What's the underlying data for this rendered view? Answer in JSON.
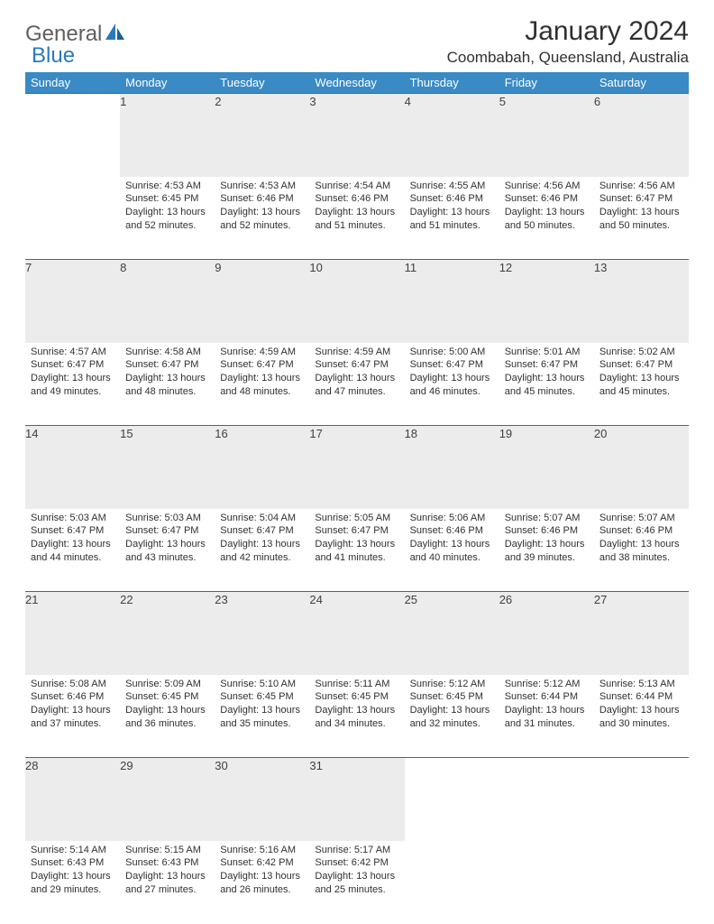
{
  "logo": {
    "text1": "General",
    "text2": "Blue"
  },
  "title": "January 2024",
  "location": "Coombabah, Queensland, Australia",
  "colors": {
    "header_bg": "#3a8ac5",
    "header_fg": "#ffffff",
    "daynum_bg": "#ececec",
    "rule": "#2a6fa5",
    "logo_gray": "#5f5f5f",
    "logo_blue": "#2a7ab9",
    "body_text": "#303030"
  },
  "weekdays": [
    "Sunday",
    "Monday",
    "Tuesday",
    "Wednesday",
    "Thursday",
    "Friday",
    "Saturday"
  ],
  "weeks": [
    [
      null,
      {
        "n": "1",
        "sr": "Sunrise: 4:53 AM",
        "ss": "Sunset: 6:45 PM",
        "d1": "Daylight: 13 hours",
        "d2": "and 52 minutes."
      },
      {
        "n": "2",
        "sr": "Sunrise: 4:53 AM",
        "ss": "Sunset: 6:46 PM",
        "d1": "Daylight: 13 hours",
        "d2": "and 52 minutes."
      },
      {
        "n": "3",
        "sr": "Sunrise: 4:54 AM",
        "ss": "Sunset: 6:46 PM",
        "d1": "Daylight: 13 hours",
        "d2": "and 51 minutes."
      },
      {
        "n": "4",
        "sr": "Sunrise: 4:55 AM",
        "ss": "Sunset: 6:46 PM",
        "d1": "Daylight: 13 hours",
        "d2": "and 51 minutes."
      },
      {
        "n": "5",
        "sr": "Sunrise: 4:56 AM",
        "ss": "Sunset: 6:46 PM",
        "d1": "Daylight: 13 hours",
        "d2": "and 50 minutes."
      },
      {
        "n": "6",
        "sr": "Sunrise: 4:56 AM",
        "ss": "Sunset: 6:47 PM",
        "d1": "Daylight: 13 hours",
        "d2": "and 50 minutes."
      }
    ],
    [
      {
        "n": "7",
        "sr": "Sunrise: 4:57 AM",
        "ss": "Sunset: 6:47 PM",
        "d1": "Daylight: 13 hours",
        "d2": "and 49 minutes."
      },
      {
        "n": "8",
        "sr": "Sunrise: 4:58 AM",
        "ss": "Sunset: 6:47 PM",
        "d1": "Daylight: 13 hours",
        "d2": "and 48 minutes."
      },
      {
        "n": "9",
        "sr": "Sunrise: 4:59 AM",
        "ss": "Sunset: 6:47 PM",
        "d1": "Daylight: 13 hours",
        "d2": "and 48 minutes."
      },
      {
        "n": "10",
        "sr": "Sunrise: 4:59 AM",
        "ss": "Sunset: 6:47 PM",
        "d1": "Daylight: 13 hours",
        "d2": "and 47 minutes."
      },
      {
        "n": "11",
        "sr": "Sunrise: 5:00 AM",
        "ss": "Sunset: 6:47 PM",
        "d1": "Daylight: 13 hours",
        "d2": "and 46 minutes."
      },
      {
        "n": "12",
        "sr": "Sunrise: 5:01 AM",
        "ss": "Sunset: 6:47 PM",
        "d1": "Daylight: 13 hours",
        "d2": "and 45 minutes."
      },
      {
        "n": "13",
        "sr": "Sunrise: 5:02 AM",
        "ss": "Sunset: 6:47 PM",
        "d1": "Daylight: 13 hours",
        "d2": "and 45 minutes."
      }
    ],
    [
      {
        "n": "14",
        "sr": "Sunrise: 5:03 AM",
        "ss": "Sunset: 6:47 PM",
        "d1": "Daylight: 13 hours",
        "d2": "and 44 minutes."
      },
      {
        "n": "15",
        "sr": "Sunrise: 5:03 AM",
        "ss": "Sunset: 6:47 PM",
        "d1": "Daylight: 13 hours",
        "d2": "and 43 minutes."
      },
      {
        "n": "16",
        "sr": "Sunrise: 5:04 AM",
        "ss": "Sunset: 6:47 PM",
        "d1": "Daylight: 13 hours",
        "d2": "and 42 minutes."
      },
      {
        "n": "17",
        "sr": "Sunrise: 5:05 AM",
        "ss": "Sunset: 6:47 PM",
        "d1": "Daylight: 13 hours",
        "d2": "and 41 minutes."
      },
      {
        "n": "18",
        "sr": "Sunrise: 5:06 AM",
        "ss": "Sunset: 6:46 PM",
        "d1": "Daylight: 13 hours",
        "d2": "and 40 minutes."
      },
      {
        "n": "19",
        "sr": "Sunrise: 5:07 AM",
        "ss": "Sunset: 6:46 PM",
        "d1": "Daylight: 13 hours",
        "d2": "and 39 minutes."
      },
      {
        "n": "20",
        "sr": "Sunrise: 5:07 AM",
        "ss": "Sunset: 6:46 PM",
        "d1": "Daylight: 13 hours",
        "d2": "and 38 minutes."
      }
    ],
    [
      {
        "n": "21",
        "sr": "Sunrise: 5:08 AM",
        "ss": "Sunset: 6:46 PM",
        "d1": "Daylight: 13 hours",
        "d2": "and 37 minutes."
      },
      {
        "n": "22",
        "sr": "Sunrise: 5:09 AM",
        "ss": "Sunset: 6:45 PM",
        "d1": "Daylight: 13 hours",
        "d2": "and 36 minutes."
      },
      {
        "n": "23",
        "sr": "Sunrise: 5:10 AM",
        "ss": "Sunset: 6:45 PM",
        "d1": "Daylight: 13 hours",
        "d2": "and 35 minutes."
      },
      {
        "n": "24",
        "sr": "Sunrise: 5:11 AM",
        "ss": "Sunset: 6:45 PM",
        "d1": "Daylight: 13 hours",
        "d2": "and 34 minutes."
      },
      {
        "n": "25",
        "sr": "Sunrise: 5:12 AM",
        "ss": "Sunset: 6:45 PM",
        "d1": "Daylight: 13 hours",
        "d2": "and 32 minutes."
      },
      {
        "n": "26",
        "sr": "Sunrise: 5:12 AM",
        "ss": "Sunset: 6:44 PM",
        "d1": "Daylight: 13 hours",
        "d2": "and 31 minutes."
      },
      {
        "n": "27",
        "sr": "Sunrise: 5:13 AM",
        "ss": "Sunset: 6:44 PM",
        "d1": "Daylight: 13 hours",
        "d2": "and 30 minutes."
      }
    ],
    [
      {
        "n": "28",
        "sr": "Sunrise: 5:14 AM",
        "ss": "Sunset: 6:43 PM",
        "d1": "Daylight: 13 hours",
        "d2": "and 29 minutes."
      },
      {
        "n": "29",
        "sr": "Sunrise: 5:15 AM",
        "ss": "Sunset: 6:43 PM",
        "d1": "Daylight: 13 hours",
        "d2": "and 27 minutes."
      },
      {
        "n": "30",
        "sr": "Sunrise: 5:16 AM",
        "ss": "Sunset: 6:42 PM",
        "d1": "Daylight: 13 hours",
        "d2": "and 26 minutes."
      },
      {
        "n": "31",
        "sr": "Sunrise: 5:17 AM",
        "ss": "Sunset: 6:42 PM",
        "d1": "Daylight: 13 hours",
        "d2": "and 25 minutes."
      },
      null,
      null,
      null
    ]
  ]
}
